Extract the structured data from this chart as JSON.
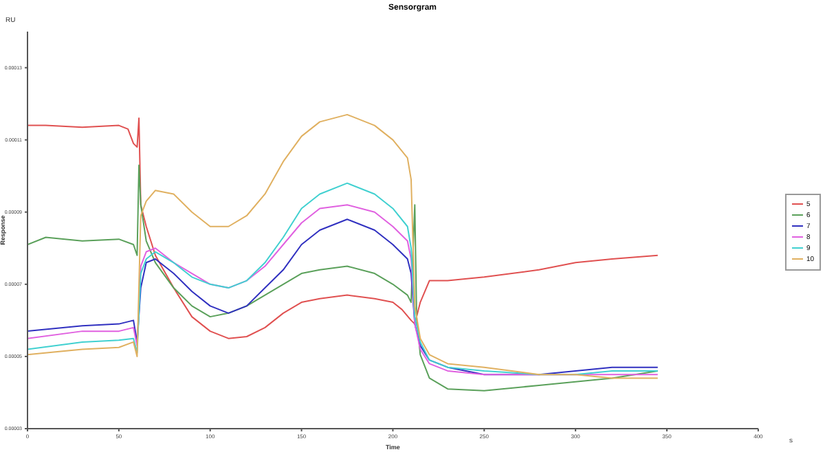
{
  "chart_data": {
    "type": "line",
    "title": "Sensorgram",
    "xlabel": "Time",
    "ylabel": "Response",
    "annotations": [
      "RU",
      "s"
    ],
    "xlim": [
      0,
      400
    ],
    "xticks": [
      0,
      50,
      100,
      150,
      200,
      250,
      300,
      350,
      400
    ],
    "ylim": [
      3e-05,
      0.00014
    ],
    "yticks": [
      {
        "value": 3e-05,
        "label": "0.00003"
      },
      {
        "value": 5e-05,
        "label": "0.00005"
      },
      {
        "value": 7e-05,
        "label": "0.00007"
      },
      {
        "value": 9e-05,
        "label": "0.00009"
      },
      {
        "value": 0.00011,
        "label": "0.00011"
      },
      {
        "value": 0.00013,
        "label": "0.00013"
      }
    ],
    "grid": false,
    "legend": "right",
    "marker": "none",
    "line_style": "solid",
    "series": [
      {
        "name": "5",
        "color": "#e05050",
        "x": [
          0,
          10,
          30,
          50,
          55,
          58,
          60,
          61,
          62,
          65,
          70,
          80,
          90,
          100,
          110,
          120,
          130,
          140,
          150,
          160,
          175,
          190,
          200,
          205,
          210,
          212,
          215,
          220,
          230,
          250,
          280,
          300,
          320,
          345
        ],
        "values": [
          0.000114,
          0.000114,
          0.0001135,
          0.000114,
          0.000113,
          0.000109,
          0.000108,
          0.000116,
          9.2e-05,
          8.6e-05,
          7.8e-05,
          6.9e-05,
          6.1e-05,
          5.7e-05,
          5.5e-05,
          5.55e-05,
          5.8e-05,
          6.2e-05,
          6.5e-05,
          6.6e-05,
          6.7e-05,
          6.6e-05,
          6.5e-05,
          6.3e-05,
          6e-05,
          5.9e-05,
          6.5e-05,
          7.1e-05,
          7.1e-05,
          7.2e-05,
          7.4e-05,
          7.6e-05,
          7.7e-05,
          7.8e-05
        ]
      },
      {
        "name": "6",
        "color": "#5aa05a",
        "x": [
          0,
          10,
          30,
          50,
          58,
          60,
          61,
          62,
          65,
          70,
          80,
          90,
          100,
          110,
          120,
          130,
          140,
          150,
          160,
          175,
          190,
          200,
          208,
          210,
          212,
          213,
          215,
          220,
          230,
          250,
          280,
          300,
          320,
          345
        ],
        "values": [
          8.1e-05,
          8.3e-05,
          8.2e-05,
          8.25e-05,
          8.1e-05,
          7.8e-05,
          0.000103,
          9.2e-05,
          8.2e-05,
          7.6e-05,
          6.9e-05,
          6.4e-05,
          6.1e-05,
          6.2e-05,
          6.4e-05,
          6.7e-05,
          7e-05,
          7.3e-05,
          7.4e-05,
          7.5e-05,
          7.3e-05,
          7e-05,
          6.7e-05,
          6.5e-05,
          9.2e-05,
          6.1e-05,
          5.05e-05,
          4.4e-05,
          4.1e-05,
          4.05e-05,
          4.2e-05,
          4.3e-05,
          4.4e-05,
          4.6e-05
        ]
      },
      {
        "name": "7",
        "color": "#3030c0",
        "x": [
          0,
          30,
          50,
          58,
          60,
          62,
          65,
          70,
          80,
          90,
          100,
          110,
          120,
          130,
          140,
          150,
          160,
          175,
          190,
          200,
          208,
          210,
          212,
          215,
          220,
          230,
          250,
          280,
          300,
          320,
          345
        ],
        "values": [
          5.7e-05,
          5.85e-05,
          5.9e-05,
          6e-05,
          5.4e-05,
          6.9e-05,
          7.6e-05,
          7.7e-05,
          7.3e-05,
          6.8e-05,
          6.4e-05,
          6.2e-05,
          6.4e-05,
          6.9e-05,
          7.4e-05,
          8.1e-05,
          8.5e-05,
          8.8e-05,
          8.5e-05,
          8.1e-05,
          7.7e-05,
          7.3e-05,
          5.9e-05,
          5.3e-05,
          4.9e-05,
          4.7e-05,
          4.5e-05,
          4.5e-05,
          4.6e-05,
          4.7e-05,
          4.7e-05
        ]
      },
      {
        "name": "8",
        "color": "#e060e0",
        "x": [
          0,
          30,
          50,
          58,
          60,
          62,
          65,
          70,
          80,
          90,
          100,
          110,
          120,
          130,
          140,
          150,
          160,
          175,
          190,
          200,
          208,
          210,
          212,
          215,
          220,
          230,
          250,
          280,
          300,
          320,
          345
        ],
        "values": [
          5.5e-05,
          5.7e-05,
          5.7e-05,
          5.8e-05,
          5.3e-05,
          7.5e-05,
          7.9e-05,
          8e-05,
          7.6e-05,
          7.3e-05,
          7e-05,
          6.9e-05,
          7.1e-05,
          7.5e-05,
          8.1e-05,
          8.7e-05,
          9.1e-05,
          9.2e-05,
          9e-05,
          8.6e-05,
          8.2e-05,
          7.7e-05,
          5.9e-05,
          5.2e-05,
          4.8e-05,
          4.6e-05,
          4.5e-05,
          4.5e-05,
          4.5e-05,
          4.5e-05,
          4.5e-05
        ]
      },
      {
        "name": "9",
        "color": "#40d0d0",
        "x": [
          0,
          30,
          50,
          58,
          60,
          62,
          65,
          70,
          80,
          90,
          100,
          110,
          120,
          130,
          140,
          150,
          160,
          175,
          190,
          200,
          208,
          210,
          212,
          215,
          220,
          230,
          250,
          280,
          300,
          320,
          345
        ],
        "values": [
          5.2e-05,
          5.4e-05,
          5.45e-05,
          5.5e-05,
          5.1e-05,
          7.3e-05,
          7.7e-05,
          7.9e-05,
          7.6e-05,
          7.2e-05,
          7e-05,
          6.9e-05,
          7.1e-05,
          7.6e-05,
          8.3e-05,
          9.1e-05,
          9.5e-05,
          9.8e-05,
          9.5e-05,
          9.1e-05,
          8.6e-05,
          8e-05,
          6.1e-05,
          5.4e-05,
          4.9e-05,
          4.7e-05,
          4.6e-05,
          4.5e-05,
          4.5e-05,
          4.6e-05,
          4.6e-05
        ]
      },
      {
        "name": "10",
        "color": "#e0b060",
        "x": [
          0,
          30,
          50,
          58,
          60,
          62,
          65,
          70,
          80,
          90,
          100,
          110,
          120,
          130,
          140,
          150,
          160,
          175,
          190,
          200,
          208,
          210,
          212,
          215,
          220,
          230,
          250,
          280,
          300,
          320,
          345
        ],
        "values": [
          5.05e-05,
          5.2e-05,
          5.25e-05,
          5.4e-05,
          5e-05,
          8.9e-05,
          9.3e-05,
          9.6e-05,
          9.5e-05,
          9e-05,
          8.6e-05,
          8.6e-05,
          8.9e-05,
          9.5e-05,
          0.000104,
          0.000111,
          0.000115,
          0.000117,
          0.000114,
          0.00011,
          0.000105,
          9.9e-05,
          6.4e-05,
          5.5e-05,
          5.05e-05,
          4.8e-05,
          4.7e-05,
          4.5e-05,
          4.5e-05,
          4.4e-05,
          4.4e-05
        ]
      }
    ]
  }
}
